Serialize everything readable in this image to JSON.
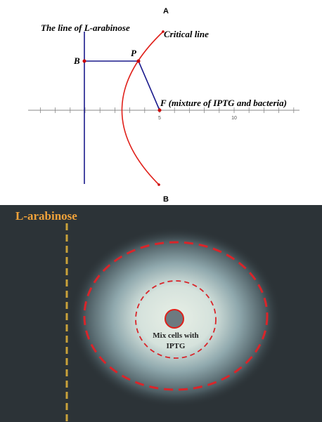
{
  "panel_a": {
    "label": "A",
    "arabinose_line_label": "The line of L-arabinose",
    "critical_line_label": "Critical line",
    "point_b": "B",
    "point_p": "P",
    "point_f": "F (mixture of IPTG and bacteria)",
    "tick_labels": [
      "5",
      "10"
    ]
  },
  "panel_b": {
    "label": "B",
    "arabinose_label": "L-arabinose",
    "center_label": [
      "Mix cells with",
      "IPTG"
    ]
  }
}
